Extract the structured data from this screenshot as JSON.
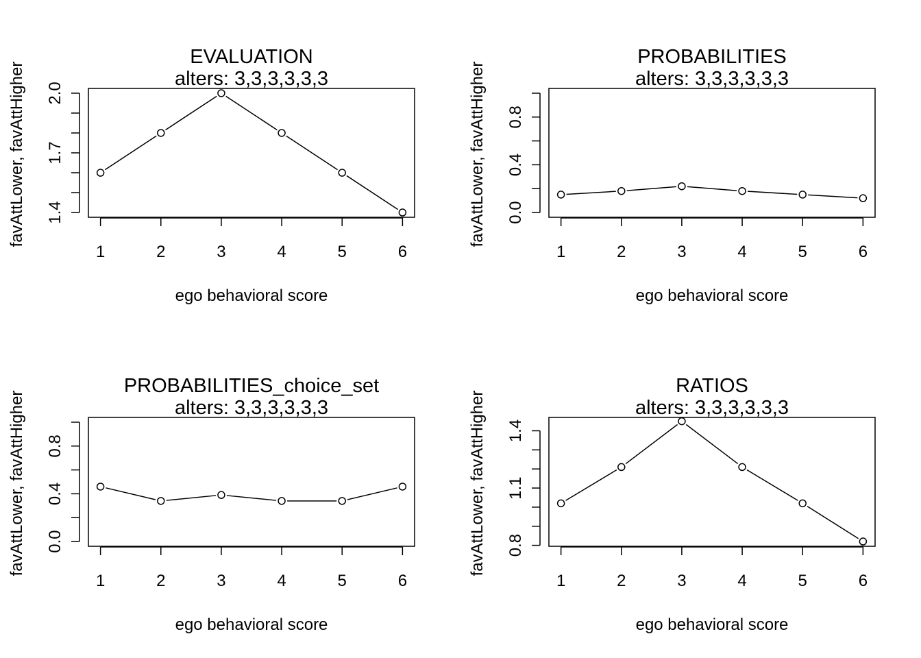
{
  "chart_data": [
    {
      "type": "line",
      "title": "EVALUATION",
      "subtitle": "alters: 3,3,3,3,3,3",
      "xlabel": "ego behavioral score",
      "ylabel": "favAttLower, favAttHigher",
      "x": [
        1,
        2,
        3,
        4,
        5,
        6
      ],
      "values": [
        1.6,
        1.8,
        2.0,
        1.8,
        1.6,
        1.4
      ],
      "xlim": [
        0.8,
        6.2
      ],
      "ylim": [
        1.376,
        2.024
      ],
      "yticks": [
        1.4,
        1.5,
        1.6,
        1.7,
        1.8,
        1.9,
        2.0
      ],
      "ytick_labels": [
        "1.4",
        "",
        "",
        "1.7",
        "",
        "",
        "2.0"
      ],
      "xticks": [
        "1",
        "2",
        "3",
        "4",
        "5",
        "6"
      ],
      "grid": false
    },
    {
      "type": "line",
      "title": "PROBABILITIES",
      "subtitle": "alters: 3,3,3,3,3,3",
      "xlabel": "ego behavioral score",
      "ylabel": "favAttLower, favAttHigher",
      "x": [
        1,
        2,
        3,
        4,
        5,
        6
      ],
      "values": [
        0.15,
        0.18,
        0.22,
        0.18,
        0.15,
        0.12
      ],
      "xlim": [
        0.8,
        6.2
      ],
      "ylim": [
        -0.04,
        1.04
      ],
      "yticks": [
        0.0,
        0.2,
        0.4,
        0.6,
        0.8,
        1.0
      ],
      "ytick_labels": [
        "0.0",
        "",
        "0.4",
        "",
        "0.8",
        ""
      ],
      "xticks": [
        "1",
        "2",
        "3",
        "4",
        "5",
        "6"
      ],
      "grid": false
    },
    {
      "type": "line",
      "title": "PROBABILITIES_choice_set",
      "subtitle": "alters: 3,3,3,3,3,3",
      "xlabel": "ego behavioral score",
      "ylabel": "favAttLower, favAttHigher",
      "x": [
        1,
        2,
        3,
        4,
        5,
        6
      ],
      "values": [
        0.46,
        0.34,
        0.39,
        0.34,
        0.34,
        0.46
      ],
      "xlim": [
        0.8,
        6.2
      ],
      "ylim": [
        -0.04,
        1.04
      ],
      "yticks": [
        0.0,
        0.2,
        0.4,
        0.6,
        0.8,
        1.0
      ],
      "ytick_labels": [
        "0.0",
        "",
        "0.4",
        "",
        "0.8",
        ""
      ],
      "xticks": [
        "1",
        "2",
        "3",
        "4",
        "5",
        "6"
      ],
      "grid": false
    },
    {
      "type": "line",
      "title": "RATIOS",
      "subtitle": "alters: 3,3,3,3,3,3",
      "xlabel": "ego behavioral score",
      "ylabel": "favAttLower, favAttHigher",
      "x": [
        1,
        2,
        3,
        4,
        5,
        6
      ],
      "values": [
        1.02,
        1.21,
        1.45,
        1.21,
        1.02,
        0.82
      ],
      "xlim": [
        0.8,
        6.2
      ],
      "ylim": [
        0.795,
        1.47
      ],
      "yticks": [
        0.8,
        0.9,
        1.0,
        1.1,
        1.2,
        1.3,
        1.4
      ],
      "ytick_labels": [
        "0.8",
        "",
        "",
        "1.1",
        "",
        "",
        "1.4"
      ],
      "xticks": [
        "1",
        "2",
        "3",
        "4",
        "5",
        "6"
      ],
      "grid": false
    }
  ]
}
